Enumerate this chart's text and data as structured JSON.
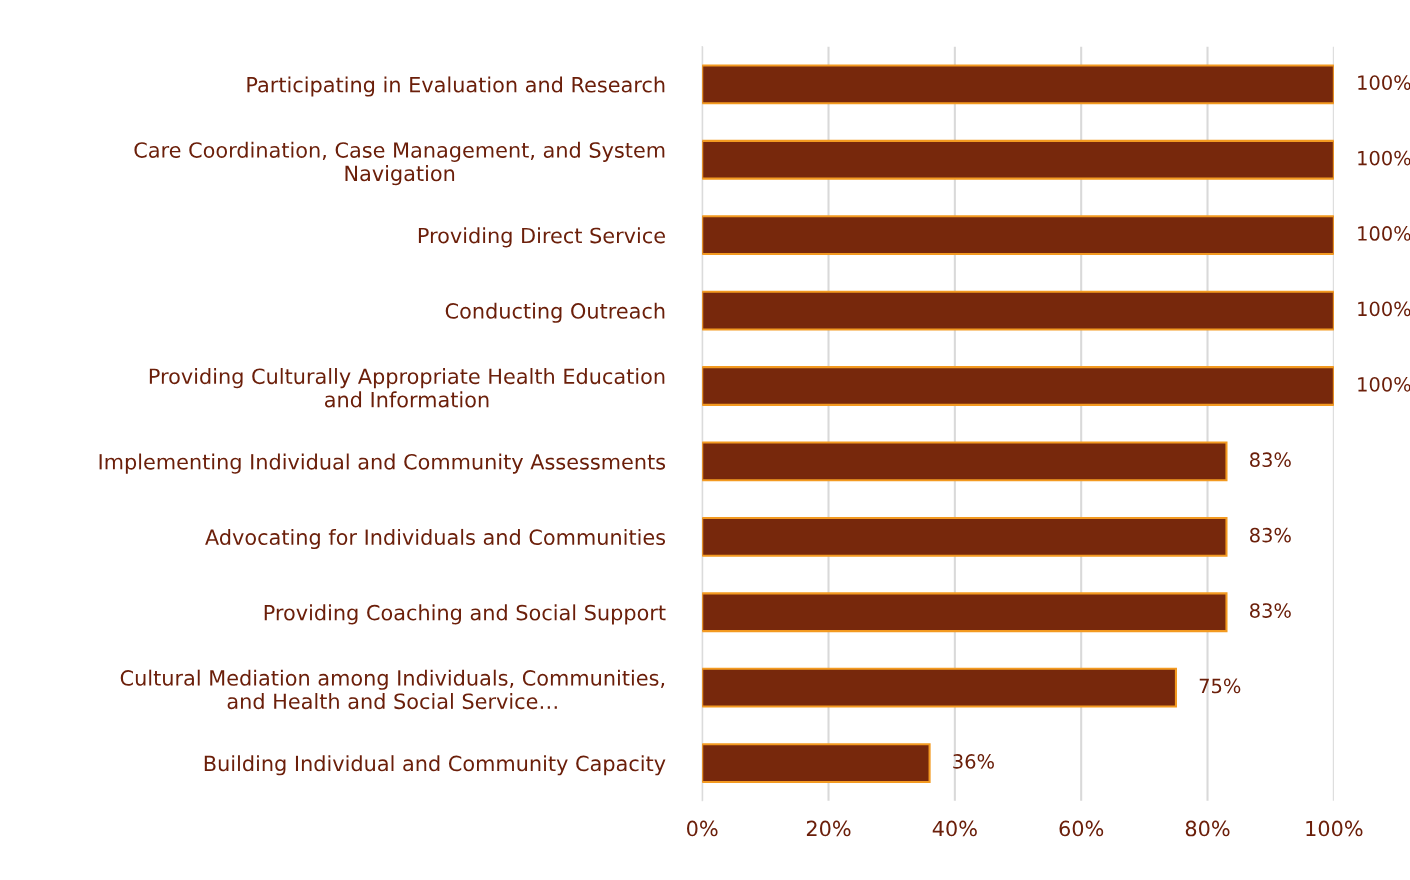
{
  "chart_data": {
    "type": "bar",
    "orientation": "horizontal",
    "categories": [
      "Participating in Evaluation and Research",
      "Care Coordination, Case Management, and System Navigation",
      "Providing Direct Service",
      "Conducting Outreach",
      "Providing Culturally Appropriate Health Education and Information",
      "Implementing Individual and Community Assessments",
      "Advocating for Individuals and Communities",
      "Providing Coaching and Social Support",
      "Cultural Mediation among Individuals, Communities, and Health and Social Service…",
      "Building Individual and Community Capacity"
    ],
    "values": [
      100,
      100,
      100,
      100,
      100,
      83,
      83,
      83,
      75,
      36
    ],
    "value_labels": [
      "100%",
      "100%",
      "100%",
      "100%",
      "100%",
      "83%",
      "83%",
      "83%",
      "75%",
      "36%"
    ],
    "color": "#77280c",
    "xlim": [
      0,
      100
    ],
    "xticks": [
      {
        "value": 0,
        "label": "0%"
      },
      {
        "value": 20,
        "label": "20%"
      },
      {
        "value": 40,
        "label": "40%"
      },
      {
        "value": 60,
        "label": "60%"
      },
      {
        "value": 80,
        "label": "80%"
      },
      {
        "value": 100,
        "label": "100%"
      }
    ],
    "grid": "x"
  }
}
